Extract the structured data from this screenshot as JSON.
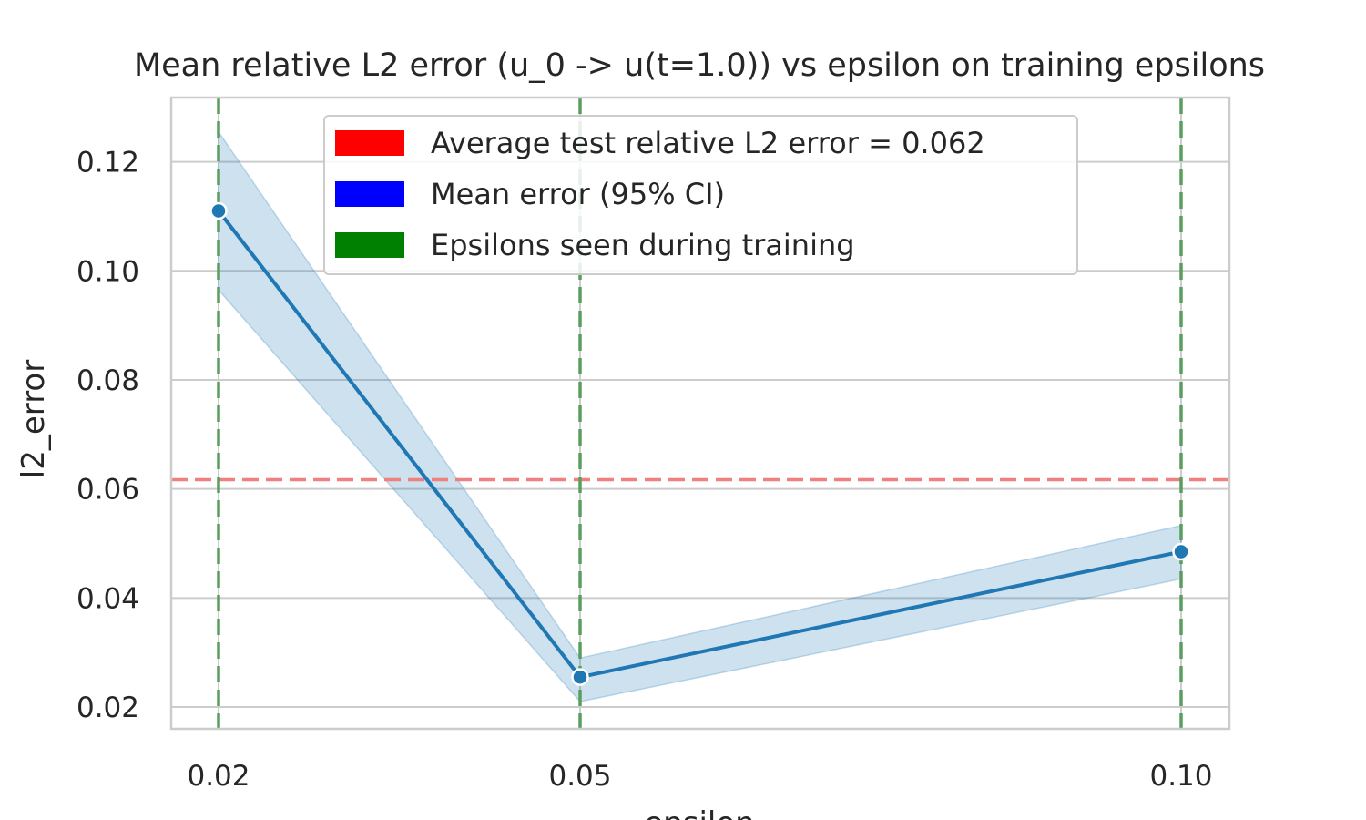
{
  "chart_data": {
    "type": "line",
    "title": "Mean relative L2 error (u_0 -> u(t=1.0)) vs epsilon on training epsilons",
    "xlabel": "epsilon",
    "ylabel": "l2_error",
    "x_tick_labels": [
      "0.02",
      "0.05",
      "0.10"
    ],
    "y_tick_labels": [
      "0.02",
      "0.04",
      "0.06",
      "0.08",
      "0.10",
      "0.12"
    ],
    "y_ticks": [
      0.02,
      0.04,
      0.06,
      0.08,
      0.1,
      0.12
    ],
    "ylim": [
      0.016,
      0.1318
    ],
    "grid": true,
    "legend_position": "top-center",
    "series": [
      {
        "name": "Mean error (95% CI)",
        "x": [
          0.02,
          0.05,
          0.1
        ],
        "y": [
          0.111,
          0.0255,
          0.0485
        ],
        "ci_lower": [
          0.0965,
          0.021,
          0.0435
        ],
        "ci_upper": [
          0.1255,
          0.029,
          0.0533
        ],
        "color": "#1f77b4"
      }
    ],
    "hlines": [
      {
        "y": 0.0617,
        "color": "#f08080",
        "style": "dashed"
      }
    ],
    "vlines": [
      {
        "x": 0.02,
        "color": "#5a9e5e",
        "style": "dashed"
      },
      {
        "x": 0.05,
        "color": "#5a9e5e",
        "style": "dashed"
      },
      {
        "x": 0.1,
        "color": "#5a9e5e",
        "style": "dashed"
      }
    ],
    "legend": [
      {
        "label": "Average test relative L2 error = 0.062",
        "color": "#ff0000"
      },
      {
        "label": "Mean error (95% CI)",
        "color": "#0000ff"
      },
      {
        "label": "Epsilons seen during training",
        "color": "#008000"
      }
    ]
  }
}
